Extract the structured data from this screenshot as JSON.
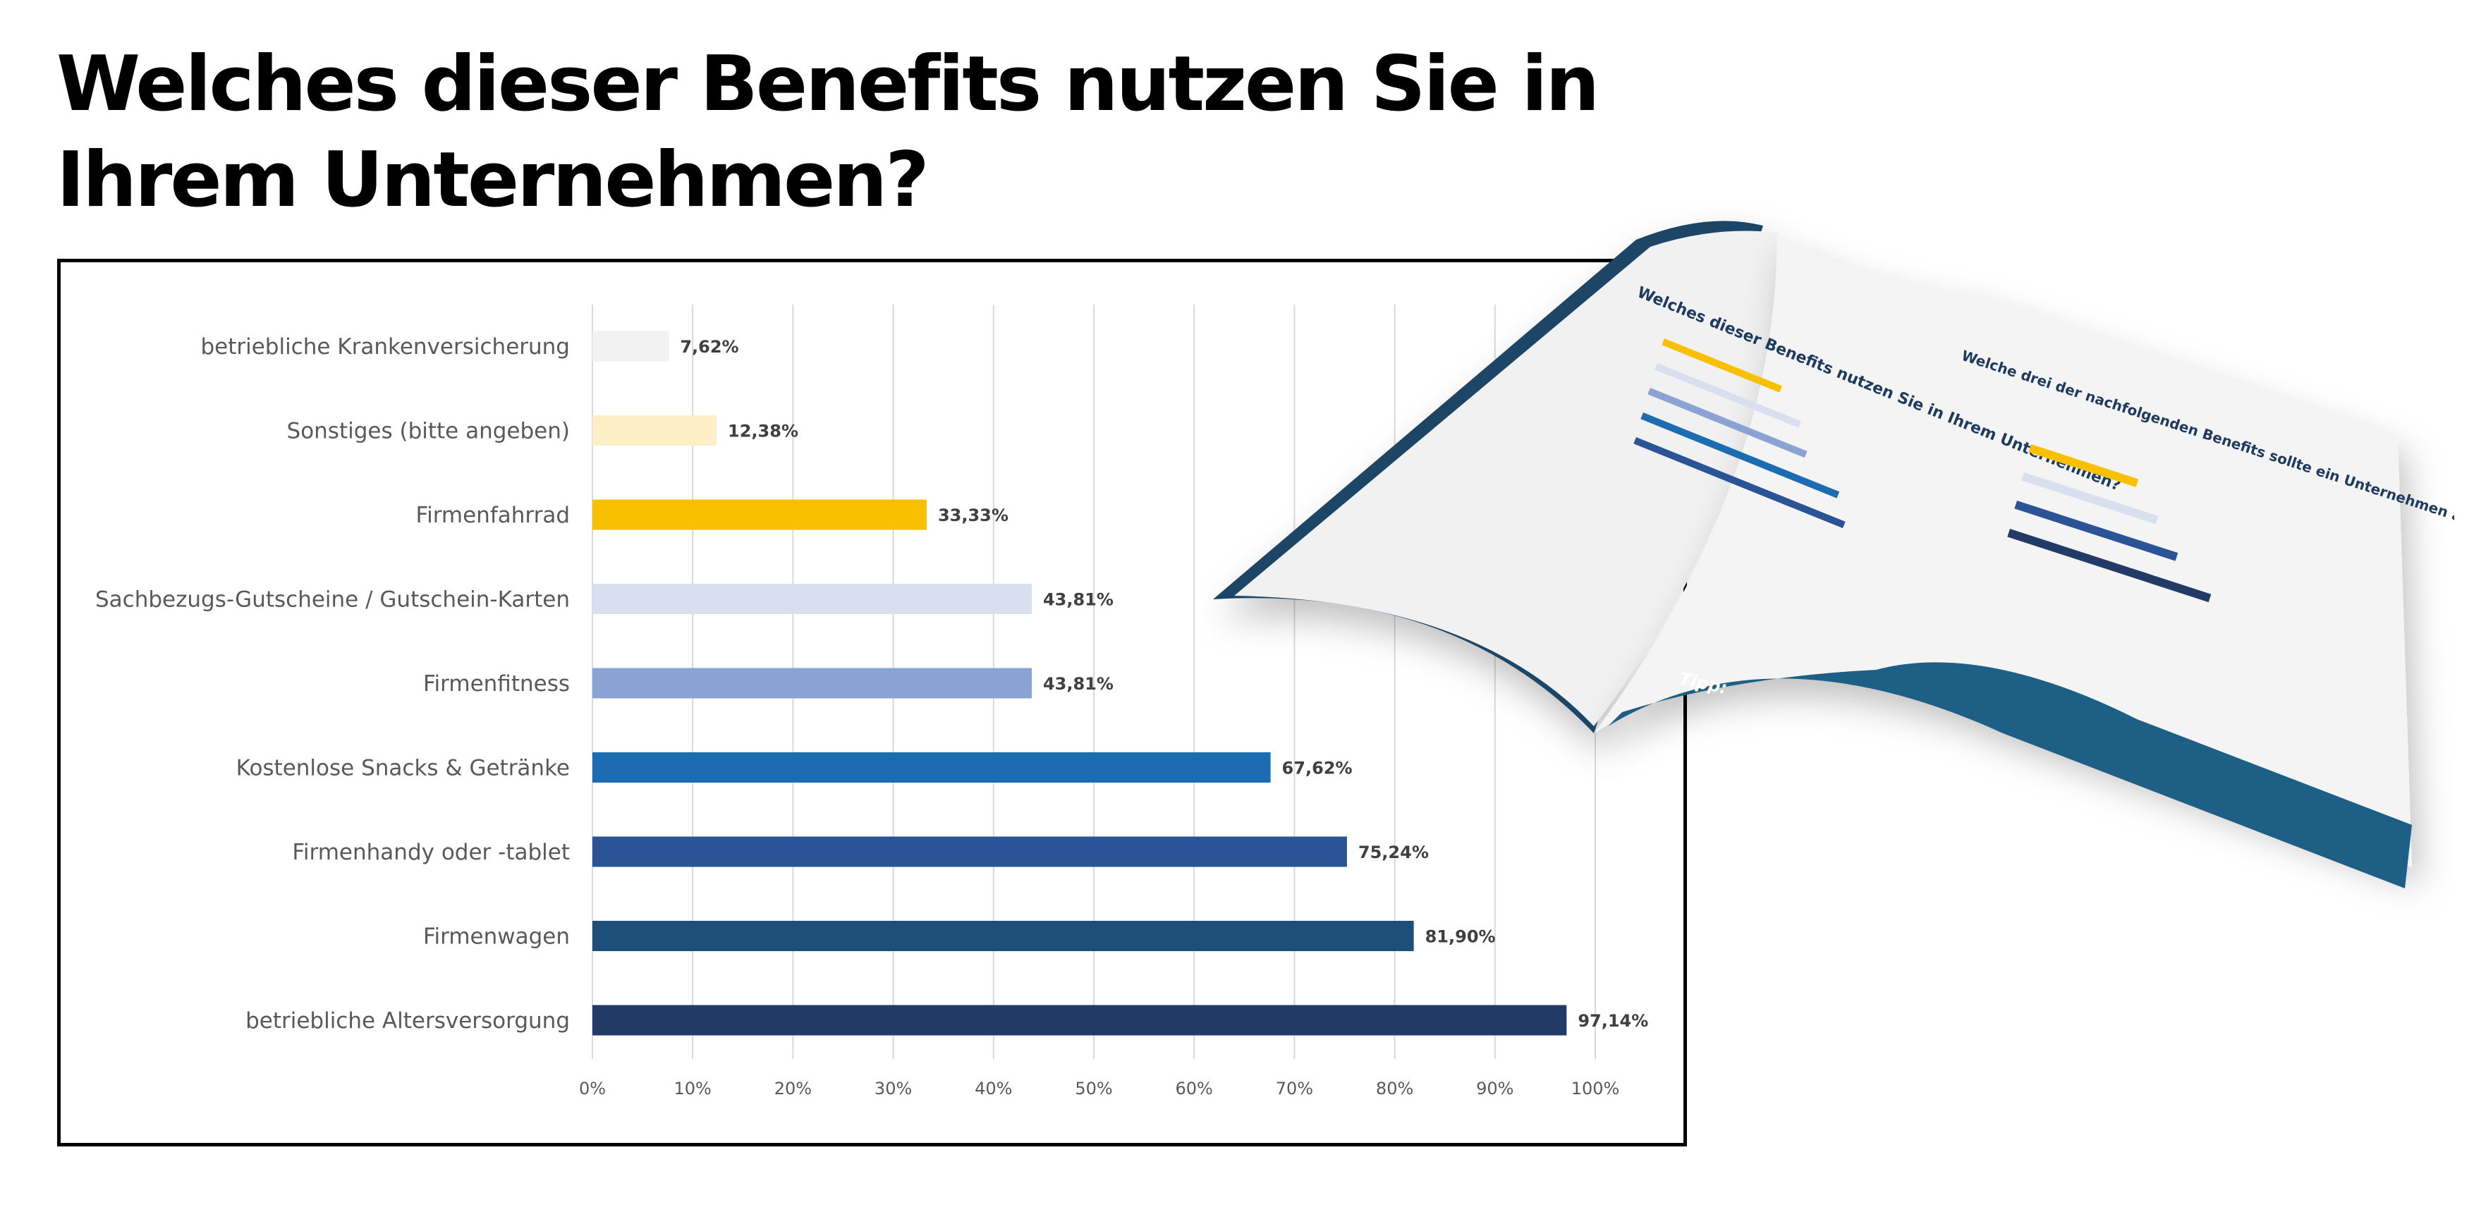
{
  "chart_data": {
    "type": "bar",
    "orientation": "horizontal",
    "title": "Welches dieser Benefits nutzen Sie in Ihrem Unternehmen?",
    "categories": [
      "betriebliche Krankenversicherung",
      "Sonstiges (bitte angeben)",
      "Firmenfahrrad",
      "Sachbezugs-Gutscheine / Gutschein-Karten",
      "Firmenfitness",
      "Kostenlose Snacks & Getränke",
      "Firmenhandy oder -tablet",
      "Firmenwagen",
      "betriebliche Altersversorgung"
    ],
    "values": [
      7.62,
      12.38,
      33.33,
      43.81,
      43.81,
      67.62,
      75.24,
      81.9,
      97.14
    ],
    "value_labels": [
      "7,62%",
      "12,38%",
      "33,33%",
      "43,81%",
      "43,81%",
      "67,62%",
      "75,24%",
      "81,90%",
      "97,14%"
    ],
    "colors": [
      "#f2f2f2",
      "#fcefc8",
      "#f8c000",
      "#d8dfee",
      "#8aa3d3",
      "#1b6cb0",
      "#2a5496",
      "#1e4e7a",
      "#213a66"
    ],
    "xlim": [
      0,
      100
    ],
    "xticks": [
      "0%",
      "10%",
      "20%",
      "30%",
      "40%",
      "50%",
      "60%",
      "70%",
      "80%",
      "90%",
      "100%"
    ],
    "grid": true,
    "xlabel": "",
    "ylabel": ""
  },
  "title_lines": [
    "Welches dieser Benefits nutzen Sie in",
    "Ihrem Unternehmen?"
  ],
  "brochure": {
    "left_page_heading": "Welches dieser Benefits nutzen Sie in Ihrem Unternehmen?",
    "right_page_heading": "Welche drei der nachfolgenden Benefits sollte ein Unternehmen auf jeden Fall anbieten?",
    "tip_label": "Tipp:"
  }
}
